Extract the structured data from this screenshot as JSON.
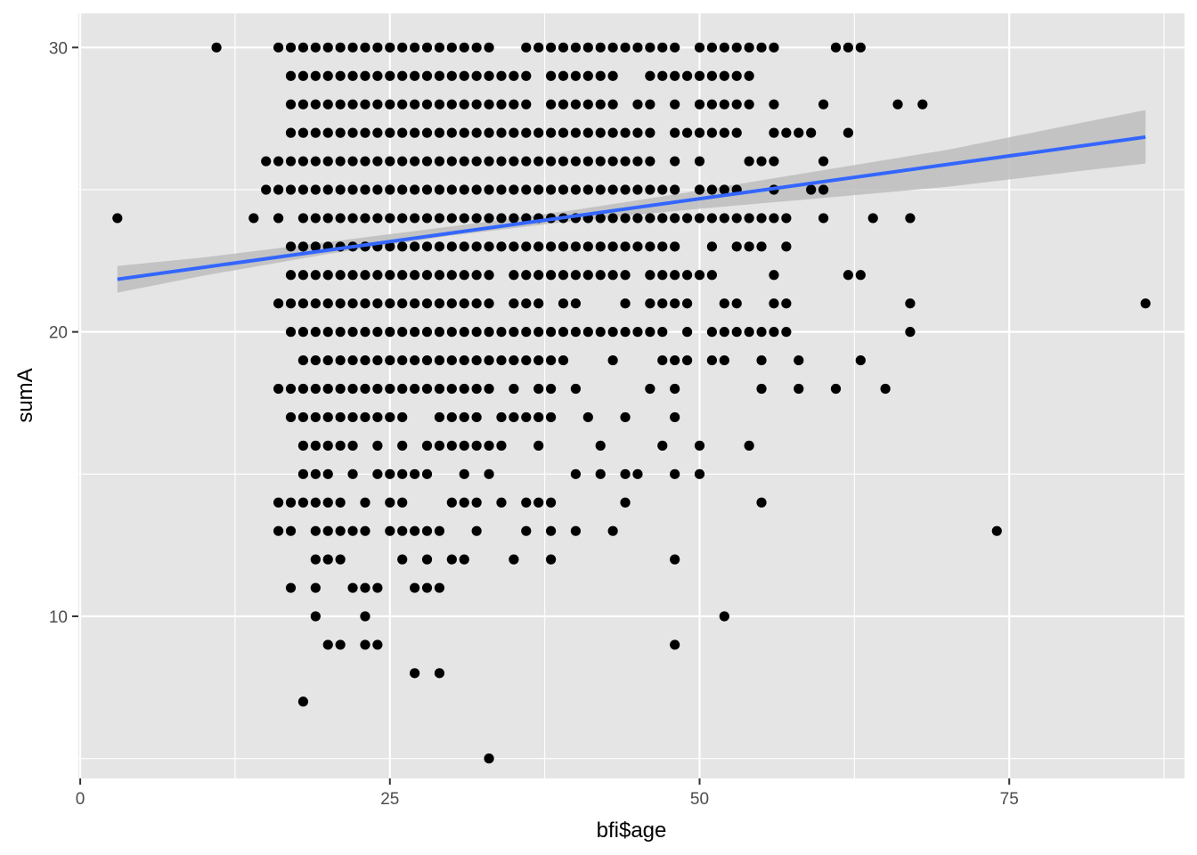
{
  "chart_data": {
    "type": "scatter",
    "title": "",
    "xlabel": "bfi$age",
    "ylabel": "sumA",
    "xlim": [
      -0.15,
      89.15
    ],
    "ylim": [
      4.3,
      31.2
    ],
    "x_ticks": [
      0,
      25,
      50,
      75
    ],
    "y_ticks": [
      10,
      20,
      30
    ],
    "x_tick_labels": [
      "0",
      "25",
      "50",
      "75"
    ],
    "y_tick_labels": [
      "10",
      "20",
      "30"
    ],
    "grid": true,
    "legend": "none",
    "colors": {
      "panel": "#e5e5e5",
      "grid": "#ffffff",
      "points": "#000000",
      "fit_line": "#3366ff",
      "ribbon": "#bdbdbd"
    },
    "rows": [
      {
        "y": 30,
        "x": [
          11,
          "16-33",
          "36-48",
          "50-56",
          61,
          62,
          63
        ]
      },
      {
        "y": 29,
        "x": [
          "17-36",
          "38-43",
          "46-54"
        ]
      },
      {
        "y": 28,
        "x": [
          "17-36",
          "38-43",
          45,
          46,
          48,
          "50-54",
          56,
          60,
          66,
          68
        ]
      },
      {
        "y": 27,
        "x": [
          "17-46",
          "48-53",
          "56-59",
          62
        ]
      },
      {
        "y": 26,
        "x": [
          "15-40",
          "41-46",
          48,
          50,
          "54-56",
          60
        ]
      },
      {
        "y": 25,
        "x": [
          "15-48",
          "50-53",
          56,
          59,
          60
        ]
      },
      {
        "y": 24,
        "x": [
          3,
          14,
          16,
          "18-57",
          60,
          64,
          67
        ]
      },
      {
        "y": 23,
        "x": [
          "17-42",
          43,
          "44-48",
          51,
          53,
          54,
          55,
          57
        ]
      },
      {
        "y": 22,
        "x": [
          "17-33",
          "35-44",
          "46-51",
          56,
          62,
          63
        ]
      },
      {
        "y": 21,
        "x": [
          "16-33",
          "35-37",
          "39-40",
          44,
          "46-49",
          52,
          53,
          56,
          57,
          67,
          86
        ]
      },
      {
        "y": 20,
        "x": [
          "17-47",
          49,
          "51-56",
          57,
          67
        ]
      },
      {
        "y": 19,
        "x": [
          "18-39",
          43,
          "47-49",
          51,
          52,
          55,
          58,
          63
        ]
      },
      {
        "y": 18,
        "x": [
          "16-33",
          35,
          37,
          38,
          40,
          46,
          48,
          55,
          58,
          61,
          65
        ]
      },
      {
        "y": 17,
        "x": [
          "17-26",
          "29-32",
          "34-38",
          41,
          44,
          48
        ]
      },
      {
        "y": 16,
        "x": [
          "18-22",
          24,
          26,
          "28-34",
          37,
          42,
          47,
          50,
          54
        ]
      },
      {
        "y": 15,
        "x": [
          18,
          19,
          20,
          22,
          24,
          25,
          26,
          27,
          28,
          31,
          33,
          40,
          42,
          44,
          45,
          48,
          50
        ]
      },
      {
        "y": 14,
        "x": [
          16,
          17,
          18,
          19,
          20,
          21,
          23,
          25,
          26,
          30,
          31,
          32,
          34,
          36,
          37,
          38,
          44,
          55
        ]
      },
      {
        "y": 13,
        "x": [
          16,
          17,
          "19-23",
          25,
          26,
          27,
          28,
          29,
          32,
          36,
          38,
          40,
          43,
          74
        ]
      },
      {
        "y": 12,
        "x": [
          19,
          20,
          21,
          26,
          28,
          30,
          31,
          35,
          38,
          48
        ]
      },
      {
        "y": 11,
        "x": [
          17,
          19,
          22,
          23,
          24,
          27,
          28,
          29
        ]
      },
      {
        "y": 10,
        "x": [
          19,
          23,
          52
        ]
      },
      {
        "y": 9,
        "x": [
          20,
          21,
          23,
          24,
          48
        ]
      },
      {
        "y": 8,
        "x": [
          27,
          29
        ]
      },
      {
        "y": 7,
        "x": [
          18
        ]
      },
      {
        "y": 5,
        "x": [
          33
        ]
      }
    ],
    "fit_line": {
      "x": [
        3,
        86
      ],
      "y": [
        21.85,
        26.85
      ]
    },
    "ribbon": {
      "x": [
        3,
        10,
        20,
        30,
        40,
        50,
        60,
        70,
        80,
        86
      ],
      "lower": [
        21.38,
        21.98,
        22.74,
        23.39,
        23.91,
        24.33,
        24.71,
        25.1,
        25.62,
        25.92
      ],
      "upper": [
        22.32,
        22.62,
        23.16,
        23.71,
        24.29,
        24.97,
        25.69,
        26.4,
        27.28,
        27.8
      ]
    }
  }
}
